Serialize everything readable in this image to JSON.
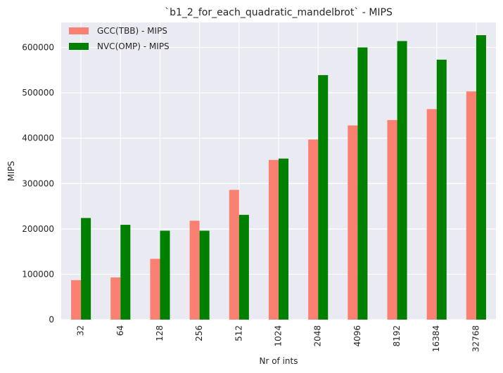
{
  "chart_data": {
    "type": "bar",
    "title": "`b1_2_for_each_quadratic_mandelbrot` - MIPS",
    "xlabel": "Nr of ints",
    "ylabel": "MIPS",
    "categories": [
      "32",
      "64",
      "128",
      "256",
      "512",
      "1024",
      "2048",
      "4096",
      "8192",
      "16384",
      "32768"
    ],
    "series": [
      {
        "name": "GCC(TBB) - MIPS",
        "color": "#fa8072",
        "values": [
          87000,
          93000,
          134000,
          218000,
          286000,
          352000,
          397000,
          428000,
          440000,
          464000,
          503000
        ]
      },
      {
        "name": "NVC(OMP) - MIPS",
        "color": "#008000",
        "values": [
          224000,
          209000,
          196000,
          196000,
          231000,
          355000,
          539000,
          600000,
          614000,
          573000,
          627000
        ]
      }
    ],
    "ylim": [
      0,
      655000
    ],
    "yticks": [
      0,
      100000,
      200000,
      300000,
      400000,
      500000,
      600000
    ],
    "grid": true,
    "legend_position": "top-left",
    "plot_background": "#eaeaf2",
    "grid_color": "#ffffff"
  }
}
